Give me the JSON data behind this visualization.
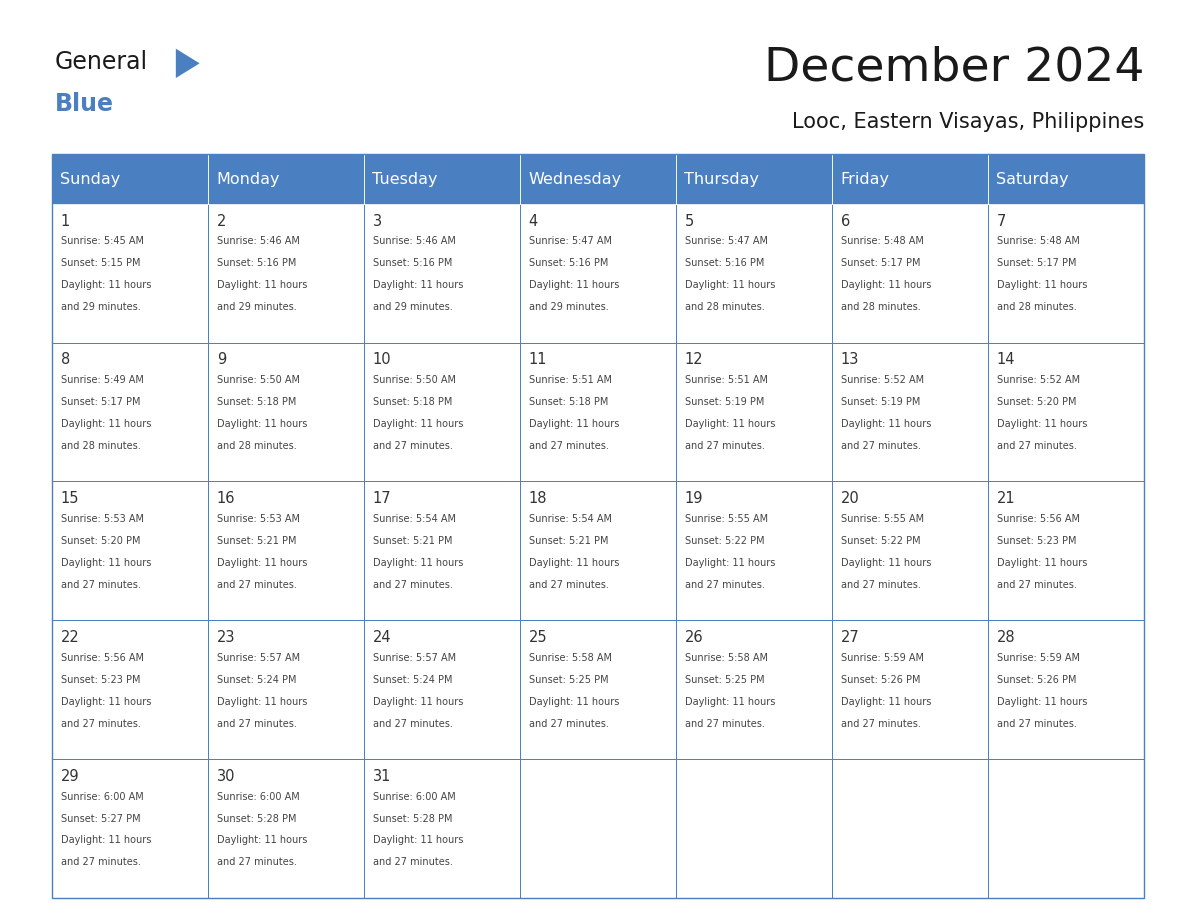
{
  "title": "December 2024",
  "subtitle": "Looc, Eastern Visayas, Philippines",
  "days_of_week": [
    "Sunday",
    "Monday",
    "Tuesday",
    "Wednesday",
    "Thursday",
    "Friday",
    "Saturday"
  ],
  "header_bg": "#4a7fc1",
  "header_text": "#FFFFFF",
  "cell_bg_white": "#FFFFFF",
  "cell_border": "#4a7fc1",
  "day_num_color": "#333333",
  "cell_text_color": "#444444",
  "title_color": "#1a1a1a",
  "subtitle_color": "#1a1a1a",
  "logo_general_color": "#1a1a1a",
  "logo_blue_color": "#4a7fc1",
  "logo_triangle_color": "#4a7fc1",
  "weeks": [
    [
      {
        "day": 1,
        "sunrise": "5:45 AM",
        "sunset": "5:15 PM",
        "daylight_h": "11 hours",
        "daylight_m": "and 29 minutes."
      },
      {
        "day": 2,
        "sunrise": "5:46 AM",
        "sunset": "5:16 PM",
        "daylight_h": "11 hours",
        "daylight_m": "and 29 minutes."
      },
      {
        "day": 3,
        "sunrise": "5:46 AM",
        "sunset": "5:16 PM",
        "daylight_h": "11 hours",
        "daylight_m": "and 29 minutes."
      },
      {
        "day": 4,
        "sunrise": "5:47 AM",
        "sunset": "5:16 PM",
        "daylight_h": "11 hours",
        "daylight_m": "and 29 minutes."
      },
      {
        "day": 5,
        "sunrise": "5:47 AM",
        "sunset": "5:16 PM",
        "daylight_h": "11 hours",
        "daylight_m": "and 28 minutes."
      },
      {
        "day": 6,
        "sunrise": "5:48 AM",
        "sunset": "5:17 PM",
        "daylight_h": "11 hours",
        "daylight_m": "and 28 minutes."
      },
      {
        "day": 7,
        "sunrise": "5:48 AM",
        "sunset": "5:17 PM",
        "daylight_h": "11 hours",
        "daylight_m": "and 28 minutes."
      }
    ],
    [
      {
        "day": 8,
        "sunrise": "5:49 AM",
        "sunset": "5:17 PM",
        "daylight_h": "11 hours",
        "daylight_m": "and 28 minutes."
      },
      {
        "day": 9,
        "sunrise": "5:50 AM",
        "sunset": "5:18 PM",
        "daylight_h": "11 hours",
        "daylight_m": "and 28 minutes."
      },
      {
        "day": 10,
        "sunrise": "5:50 AM",
        "sunset": "5:18 PM",
        "daylight_h": "11 hours",
        "daylight_m": "and 27 minutes."
      },
      {
        "day": 11,
        "sunrise": "5:51 AM",
        "sunset": "5:18 PM",
        "daylight_h": "11 hours",
        "daylight_m": "and 27 minutes."
      },
      {
        "day": 12,
        "sunrise": "5:51 AM",
        "sunset": "5:19 PM",
        "daylight_h": "11 hours",
        "daylight_m": "and 27 minutes."
      },
      {
        "day": 13,
        "sunrise": "5:52 AM",
        "sunset": "5:19 PM",
        "daylight_h": "11 hours",
        "daylight_m": "and 27 minutes."
      },
      {
        "day": 14,
        "sunrise": "5:52 AM",
        "sunset": "5:20 PM",
        "daylight_h": "11 hours",
        "daylight_m": "and 27 minutes."
      }
    ],
    [
      {
        "day": 15,
        "sunrise": "5:53 AM",
        "sunset": "5:20 PM",
        "daylight_h": "11 hours",
        "daylight_m": "and 27 minutes."
      },
      {
        "day": 16,
        "sunrise": "5:53 AM",
        "sunset": "5:21 PM",
        "daylight_h": "11 hours",
        "daylight_m": "and 27 minutes."
      },
      {
        "day": 17,
        "sunrise": "5:54 AM",
        "sunset": "5:21 PM",
        "daylight_h": "11 hours",
        "daylight_m": "and 27 minutes."
      },
      {
        "day": 18,
        "sunrise": "5:54 AM",
        "sunset": "5:21 PM",
        "daylight_h": "11 hours",
        "daylight_m": "and 27 minutes."
      },
      {
        "day": 19,
        "sunrise": "5:55 AM",
        "sunset": "5:22 PM",
        "daylight_h": "11 hours",
        "daylight_m": "and 27 minutes."
      },
      {
        "day": 20,
        "sunrise": "5:55 AM",
        "sunset": "5:22 PM",
        "daylight_h": "11 hours",
        "daylight_m": "and 27 minutes."
      },
      {
        "day": 21,
        "sunrise": "5:56 AM",
        "sunset": "5:23 PM",
        "daylight_h": "11 hours",
        "daylight_m": "and 27 minutes."
      }
    ],
    [
      {
        "day": 22,
        "sunrise": "5:56 AM",
        "sunset": "5:23 PM",
        "daylight_h": "11 hours",
        "daylight_m": "and 27 minutes."
      },
      {
        "day": 23,
        "sunrise": "5:57 AM",
        "sunset": "5:24 PM",
        "daylight_h": "11 hours",
        "daylight_m": "and 27 minutes."
      },
      {
        "day": 24,
        "sunrise": "5:57 AM",
        "sunset": "5:24 PM",
        "daylight_h": "11 hours",
        "daylight_m": "and 27 minutes."
      },
      {
        "day": 25,
        "sunrise": "5:58 AM",
        "sunset": "5:25 PM",
        "daylight_h": "11 hours",
        "daylight_m": "and 27 minutes."
      },
      {
        "day": 26,
        "sunrise": "5:58 AM",
        "sunset": "5:25 PM",
        "daylight_h": "11 hours",
        "daylight_m": "and 27 minutes."
      },
      {
        "day": 27,
        "sunrise": "5:59 AM",
        "sunset": "5:26 PM",
        "daylight_h": "11 hours",
        "daylight_m": "and 27 minutes."
      },
      {
        "day": 28,
        "sunrise": "5:59 AM",
        "sunset": "5:26 PM",
        "daylight_h": "11 hours",
        "daylight_m": "and 27 minutes."
      }
    ],
    [
      {
        "day": 29,
        "sunrise": "6:00 AM",
        "sunset": "5:27 PM",
        "daylight_h": "11 hours",
        "daylight_m": "and 27 minutes."
      },
      {
        "day": 30,
        "sunrise": "6:00 AM",
        "sunset": "5:28 PM",
        "daylight_h": "11 hours",
        "daylight_m": "and 27 minutes."
      },
      {
        "day": 31,
        "sunrise": "6:00 AM",
        "sunset": "5:28 PM",
        "daylight_h": "11 hours",
        "daylight_m": "and 27 minutes."
      },
      null,
      null,
      null,
      null
    ]
  ]
}
